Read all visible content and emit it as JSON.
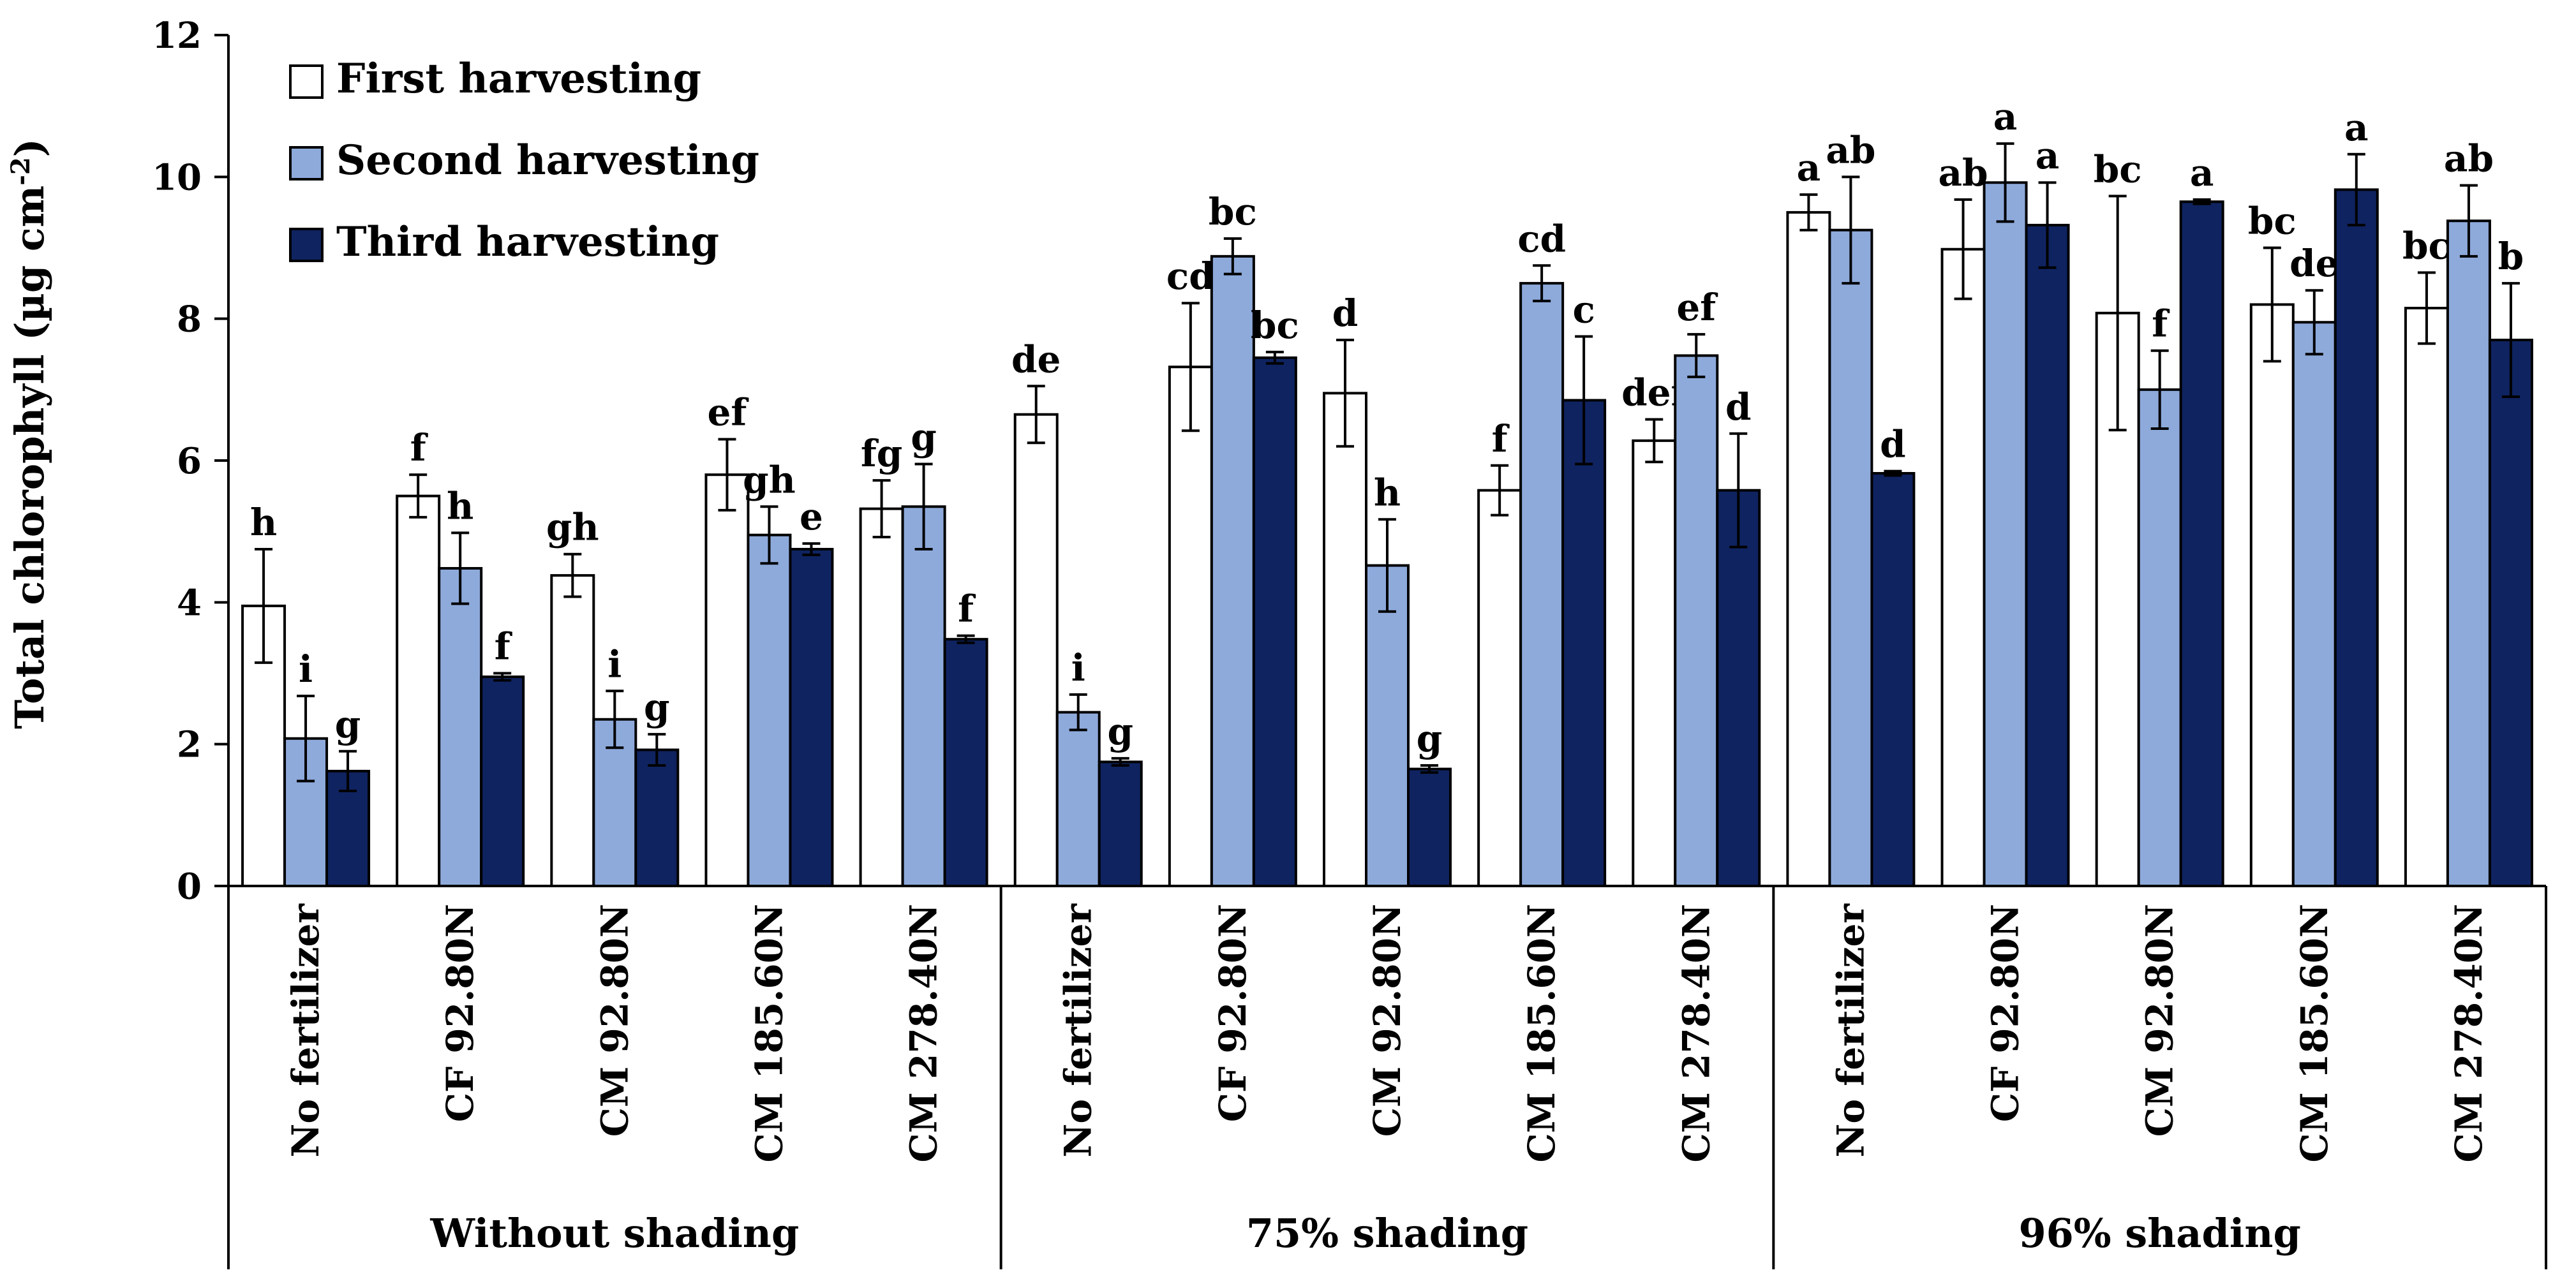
{
  "chart_data": {
    "type": "bar",
    "ylabel": "Total chlorophyll (µg cm",
    "ylabel_unit_sup": "-2",
    "ylabel_close": ")",
    "ylim": [
      0,
      12
    ],
    "yticks": [
      0,
      2,
      4,
      6,
      8,
      10,
      12
    ],
    "legend_position": "top-left",
    "colors": {
      "First harvesting": "#ffffff",
      "Second harvesting": "#8eaadb",
      "Third harvesting": "#0f2360"
    },
    "groups": [
      {
        "name": "Without shading",
        "categories": [
          "No fertilizer",
          "CF 92.80N",
          "CM 92.80N",
          "CM 185.60N",
          "CM 278.40N"
        ]
      },
      {
        "name": "75% shading",
        "categories": [
          "No fertilizer",
          "CF 92.80N",
          "CM 92.80N",
          "CM 185.60N",
          "CM 278.40N"
        ]
      },
      {
        "name": "96% shading",
        "categories": [
          "No fertilizer",
          "CF 92.80N",
          "CM 92.80N",
          "CM 185.60N",
          "CM 278.40N"
        ]
      }
    ],
    "series": [
      {
        "name": "First harvesting",
        "values": [
          3.95,
          5.5,
          4.38,
          5.8,
          5.32,
          6.65,
          7.32,
          6.95,
          5.58,
          6.28,
          9.5,
          8.98,
          8.08,
          8.2,
          8.15
        ],
        "errors": [
          0.8,
          0.3,
          0.3,
          0.5,
          0.4,
          0.4,
          0.9,
          0.75,
          0.35,
          0.3,
          0.25,
          0.7,
          1.65,
          0.8,
          0.5
        ],
        "letters": [
          "h",
          "f",
          "gh",
          "ef",
          "fg",
          "de",
          "cd",
          "d",
          "f",
          "def",
          "a",
          "ab",
          "bc",
          "bc",
          "bc"
        ]
      },
      {
        "name": "Second harvesting",
        "values": [
          2.08,
          4.48,
          2.35,
          4.95,
          5.35,
          2.45,
          8.88,
          4.52,
          8.5,
          7.48,
          9.25,
          9.92,
          7.0,
          7.95,
          9.38
        ],
        "errors": [
          0.6,
          0.5,
          0.4,
          0.4,
          0.6,
          0.25,
          0.25,
          0.65,
          0.25,
          0.3,
          0.75,
          0.55,
          0.55,
          0.45,
          0.5
        ],
        "letters": [
          "i",
          "h",
          "i",
          "gh",
          "g",
          "i",
          "bc",
          "h",
          "cd",
          "ef",
          "ab",
          "a",
          "f",
          "de",
          "ab"
        ]
      },
      {
        "name": "Third harvesting",
        "values": [
          1.62,
          2.95,
          1.92,
          4.75,
          3.48,
          1.75,
          7.45,
          1.65,
          6.85,
          5.58,
          5.82,
          9.32,
          9.65,
          9.82,
          7.7
        ],
        "errors": [
          0.28,
          0.05,
          0.22,
          0.08,
          0.05,
          0.05,
          0.08,
          0.05,
          0.9,
          0.8,
          0.03,
          0.6,
          0.03,
          0.5,
          0.8
        ],
        "letters": [
          "g",
          "f",
          "g",
          "e",
          "f",
          "g",
          "bc",
          "g",
          "c",
          "d",
          "d",
          "a",
          "a",
          "a",
          "b"
        ]
      }
    ]
  }
}
